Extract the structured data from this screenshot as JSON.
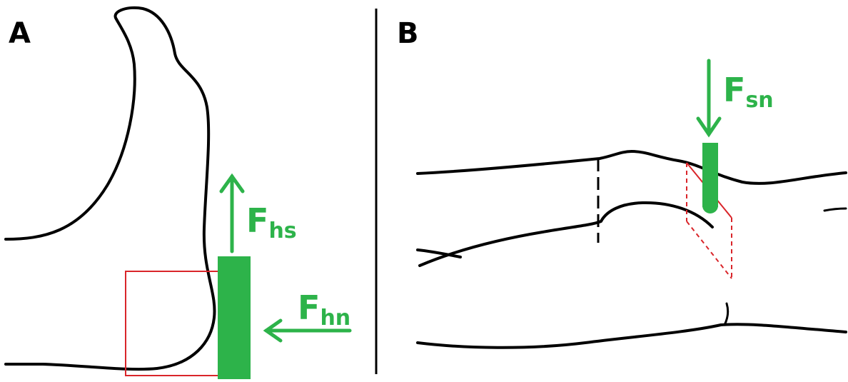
{
  "panels": {
    "a": {
      "letter": "A"
    },
    "b": {
      "letter": "B"
    }
  },
  "forces": {
    "hs": {
      "main": "F",
      "sub": "hs"
    },
    "hn": {
      "main": "F",
      "sub": "hn"
    },
    "sn": {
      "main": "F",
      "sub": "sn"
    }
  },
  "colors": {
    "force": "#2db34a",
    "box": "#d9252a",
    "outline": "#000000"
  }
}
